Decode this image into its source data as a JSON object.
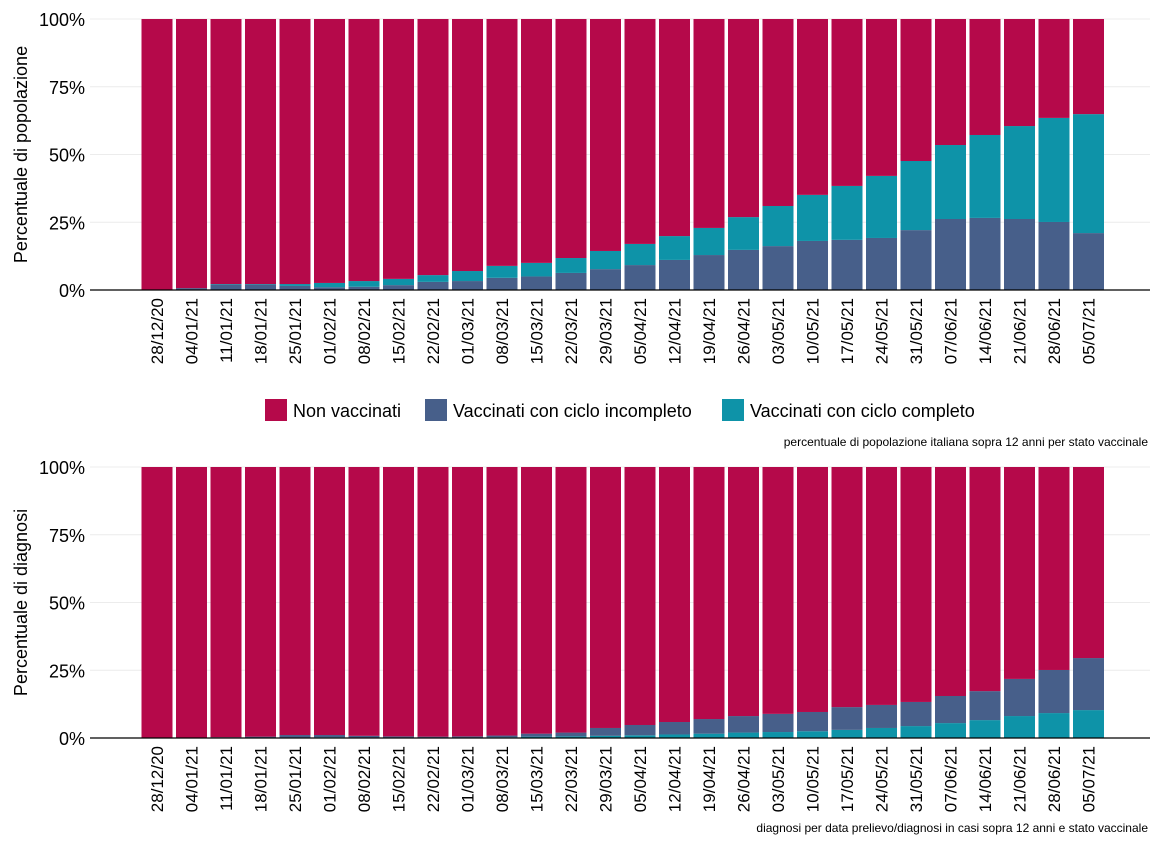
{
  "chart_data": [
    {
      "type": "stacked_bar",
      "y_label": "Percentuale di popolazione",
      "caption": "percentuale di popolazione italiana sopra 12 anni per stato vaccinale",
      "categories": [
        "28/12/20",
        "04/01/21",
        "11/01/21",
        "18/01/21",
        "25/01/21",
        "01/02/21",
        "08/02/21",
        "15/02/21",
        "22/02/21",
        "01/03/21",
        "08/03/21",
        "15/03/21",
        "22/03/21",
        "29/03/21",
        "05/04/21",
        "12/04/21",
        "19/04/21",
        "26/04/21",
        "03/05/21",
        "10/05/21",
        "17/05/21",
        "24/05/21",
        "31/05/21",
        "07/06/21",
        "14/06/21",
        "21/06/21",
        "28/06/21",
        "05/07/21"
      ],
      "series": [
        {
          "name": "Non vaccinati",
          "color": "#b5094a",
          "values": [
            100,
            99.3,
            97.8,
            97.8,
            97.8,
            97.4,
            96.7,
            95.9,
            94.5,
            93.0,
            91.1,
            90.0,
            88.2,
            85.6,
            83.0,
            80.1,
            77.1,
            73.1,
            69.0,
            64.9,
            61.6,
            57.9,
            52.4,
            46.5,
            42.8,
            39.5,
            36.5,
            35.1
          ]
        },
        {
          "name": "Vaccinati con ciclo incompleto",
          "color": "#475f8a",
          "values": [
            0,
            0.7,
            2.0,
            2.0,
            1.5,
            1.0,
            1.2,
            1.8,
            3.0,
            3.3,
            4.5,
            5.0,
            6.3,
            7.7,
            9.2,
            11.1,
            12.9,
            14.8,
            16.2,
            18.1,
            18.5,
            19.2,
            22.1,
            26.2,
            26.6,
            26.2,
            25.1,
            21.0
          ]
        },
        {
          "name": "Vaccinati con ciclo completo",
          "color": "#0e93a8",
          "values": [
            0,
            0,
            0.2,
            0.2,
            0.7,
            1.6,
            2.1,
            2.3,
            2.5,
            3.7,
            4.4,
            5.0,
            5.5,
            6.7,
            7.8,
            8.8,
            10.0,
            12.1,
            14.8,
            17.0,
            19.9,
            22.9,
            25.5,
            27.3,
            30.6,
            34.3,
            38.4,
            43.9
          ]
        }
      ],
      "stack_order": [
        1,
        2,
        0
      ],
      "ylim": [
        0,
        100
      ],
      "yticks": [
        {
          "value": 0,
          "label": "0%"
        },
        {
          "value": 25,
          "label": "25%"
        },
        {
          "value": 50,
          "label": "50%"
        },
        {
          "value": 75,
          "label": "75%"
        },
        {
          "value": 100,
          "label": "100%"
        }
      ],
      "grid": true
    },
    {
      "type": "stacked_bar",
      "y_label": "Percentuale di diagnosi",
      "caption": "diagnosi per data prelievo/diagnosi in casi sopra 12 anni  e stato vaccinale",
      "categories": [
        "28/12/20",
        "04/01/21",
        "11/01/21",
        "18/01/21",
        "25/01/21",
        "01/02/21",
        "08/02/21",
        "15/02/21",
        "22/02/21",
        "01/03/21",
        "08/03/21",
        "15/03/21",
        "22/03/21",
        "29/03/21",
        "05/04/21",
        "12/04/21",
        "19/04/21",
        "26/04/21",
        "03/05/21",
        "10/05/21",
        "17/05/21",
        "24/05/21",
        "31/05/21",
        "07/06/21",
        "14/06/21",
        "21/06/21",
        "28/06/21",
        "05/07/21"
      ],
      "series": [
        {
          "name": "Non vaccinati",
          "color": "#b5094a",
          "values": [
            100,
            100,
            99.7,
            99.5,
            98.9,
            98.9,
            99.2,
            99.4,
            99.5,
            99.4,
            99.1,
            98.4,
            98.0,
            96.3,
            95.2,
            94.1,
            93.0,
            91.9,
            91.1,
            90.4,
            88.6,
            87.8,
            86.7,
            84.5,
            82.7,
            78.2,
            74.9,
            70.5
          ]
        },
        {
          "name": "Vaccinati con ciclo incompleto",
          "color": "#475f8a",
          "values": [
            0,
            0,
            0.3,
            0.5,
            0.9,
            0.8,
            0.6,
            0.4,
            0.3,
            0.4,
            0.6,
            1.1,
            1.4,
            2.9,
            3.8,
            4.6,
            5.4,
            6.1,
            6.7,
            7.1,
            8.4,
            8.5,
            8.9,
            10.0,
            10.7,
            13.7,
            15.9,
            19.2
          ]
        },
        {
          "name": "Vaccinati con ciclo completo",
          "color": "#0e93a8",
          "values": [
            0,
            0,
            0,
            0,
            0.2,
            0.3,
            0.2,
            0.2,
            0.2,
            0.2,
            0.3,
            0.5,
            0.6,
            0.8,
            1.0,
            1.3,
            1.6,
            2.0,
            2.2,
            2.5,
            3.0,
            3.7,
            4.4,
            5.5,
            6.6,
            8.1,
            9.2,
            10.3
          ]
        }
      ],
      "stack_order": [
        2,
        1,
        0
      ],
      "ylim": [
        0,
        100
      ],
      "yticks": [
        {
          "value": 0,
          "label": "0%"
        },
        {
          "value": 25,
          "label": "25%"
        },
        {
          "value": 50,
          "label": "50%"
        },
        {
          "value": 75,
          "label": "75%"
        },
        {
          "value": 100,
          "label": "100%"
        }
      ],
      "grid": true
    }
  ]
}
